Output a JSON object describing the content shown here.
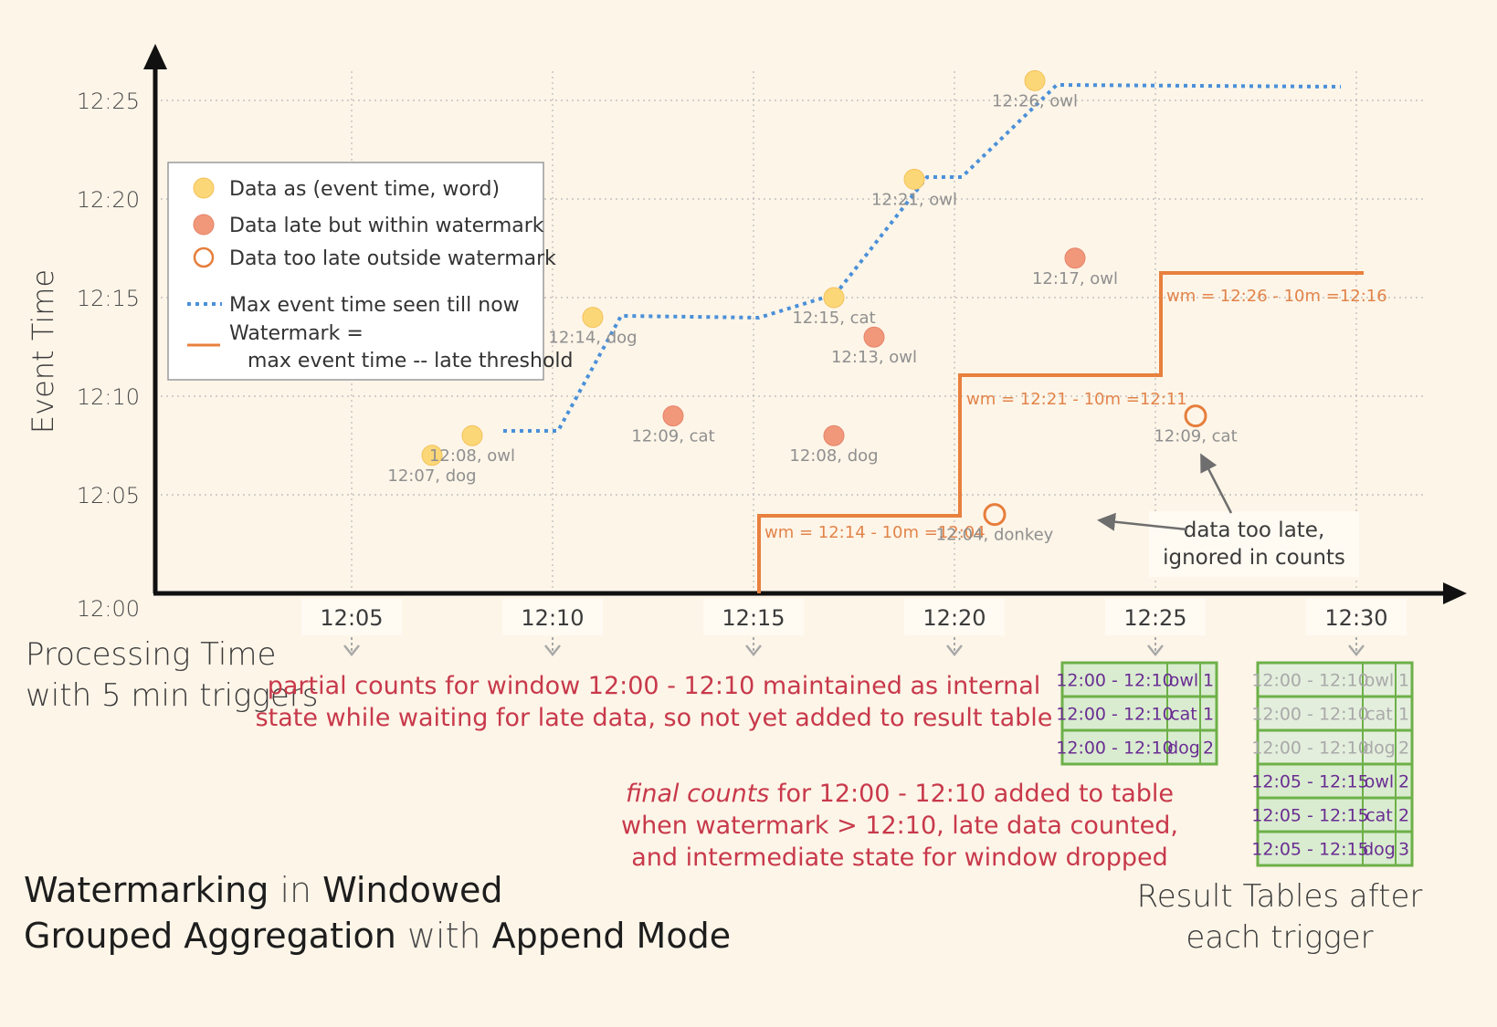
{
  "chart_data": {
    "type": "scatter",
    "ylabel": "Event Time",
    "xlabel_lines": [
      "Processing Time",
      "with 5 min triggers"
    ],
    "y_ticks": [
      "12:00",
      "12:05",
      "12:10",
      "12:15",
      "12:20",
      "12:25"
    ],
    "x_ticks": [
      "12:05",
      "12:10",
      "12:15",
      "12:20",
      "12:25",
      "12:30"
    ],
    "legend": {
      "on_time": "Data as (event time, word)",
      "late_within": "Data late but within watermark",
      "too_late": "Data too late outside watermark",
      "max_event": "Max event time seen till now",
      "watermark_line1": "Watermark =",
      "watermark_line2": "max event time -- late threshold"
    },
    "colors": {
      "on_time": "#fcd778",
      "late_within": "#f1987a",
      "too_late": "#e67e3c",
      "max_event": "#4a90d9",
      "watermark": "#e8803e",
      "result_border": "#6db048"
    },
    "points": [
      {
        "x": "12:07",
        "y": "12:07",
        "label": "12:07, dog",
        "kind": "on_time"
      },
      {
        "x": "12:08",
        "y": "12:08",
        "label": "12:08, owl",
        "kind": "on_time"
      },
      {
        "x": "12:11",
        "y": "12:14",
        "label": "12:14, dog",
        "kind": "on_time"
      },
      {
        "x": "12:13",
        "y": "12:09",
        "label": "12:09, cat",
        "kind": "late_within"
      },
      {
        "x": "12:17",
        "y": "12:15",
        "label": "12:15, cat",
        "kind": "on_time"
      },
      {
        "x": "12:17",
        "y": "12:08",
        "label": "12:08, dog",
        "kind": "late_within"
      },
      {
        "x": "12:18",
        "y": "12:13",
        "label": "12:13, owl",
        "kind": "late_within"
      },
      {
        "x": "12:19",
        "y": "12:21",
        "label": "12:21, owl",
        "kind": "on_time"
      },
      {
        "x": "12:21",
        "y": "12:04",
        "label": "12:04, donkey",
        "kind": "too_late"
      },
      {
        "x": "12:22",
        "y": "12:26",
        "label": "12:26, owl",
        "kind": "on_time"
      },
      {
        "x": "12:23",
        "y": "12:17",
        "label": "12:17, owl",
        "kind": "late_within"
      },
      {
        "x": "12:26",
        "y": "12:09",
        "label": "12:09, cat",
        "kind": "too_late"
      }
    ],
    "watermark_labels": [
      "wm = 12:14 - 10m =12:04",
      "wm = 12:21 - 10m =12:11",
      "wm = 12:26 - 10m =12:16"
    ]
  },
  "annotations": {
    "too_late_line1": "data too late,",
    "too_late_line2": "ignored in counts",
    "partial_line1": "partial counts for window 12:00 - 12:10 maintained as internal",
    "partial_line2": "state while waiting for late data, so not yet added  to result table",
    "final_italic": "final counts",
    "final_line1_rest": " for 12:00 - 12:10 added to table",
    "final_line2": "when watermark > 12:10, late data counted,",
    "final_line3": "and intermediate state for window dropped"
  },
  "title": {
    "w1": "Watermarking",
    "w2": " in ",
    "w3": "Windowed",
    "w4": "Grouped Aggregation",
    "w5": " with ",
    "w6": "Append Mode"
  },
  "result_caption": [
    "Result Tables after",
    "each trigger"
  ],
  "result_table_1225": [
    [
      "12:00 - 12:10",
      "owl",
      "1"
    ],
    [
      "12:00 - 12:10",
      "cat",
      "1"
    ],
    [
      "12:00 - 12:10",
      "dog",
      "2"
    ]
  ],
  "result_table_1230": {
    "old": [
      [
        "12:00 - 12:10",
        "owl",
        "1"
      ],
      [
        "12:00 - 12:10",
        "cat",
        "1"
      ],
      [
        "12:00 - 12:10",
        "dog",
        "2"
      ]
    ],
    "new": [
      [
        "12:05 - 12:15",
        "owl",
        "2"
      ],
      [
        "12:05 - 12:15",
        "cat",
        "2"
      ],
      [
        "12:05 - 12:15",
        "dog",
        "3"
      ]
    ]
  }
}
